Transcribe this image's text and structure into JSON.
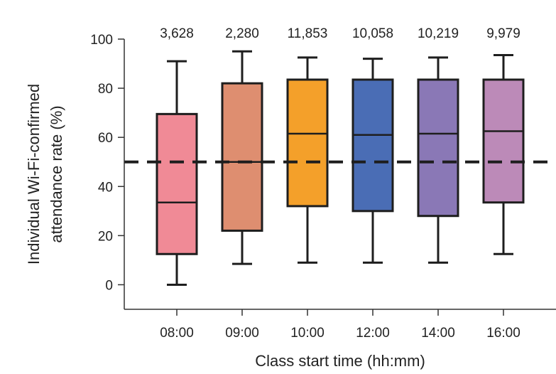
{
  "chart_data": {
    "type": "boxplot",
    "xlabel": "Class start time (hh:mm)",
    "ylabel": "Individual Wi-Fi-confirmed attendance rate (%)",
    "ylabel_lines": [
      "Individual Wi-Fi-confirmed",
      "attendance rate (%)"
    ],
    "ylim": [
      -10,
      100
    ],
    "yticks": [
      0,
      20,
      40,
      60,
      80,
      100
    ],
    "reference_line": 50,
    "grid": false,
    "categories": [
      "08:00",
      "09:00",
      "10:00",
      "12:00",
      "14:00",
      "16:00"
    ],
    "counts": [
      "3,628",
      "2,280",
      "11,853",
      "10,058",
      "10,219",
      "9,979"
    ],
    "boxes": [
      {
        "category": "08:00",
        "min": 0,
        "q1": 12.5,
        "median": 33.5,
        "q3": 69.5,
        "max": 91,
        "color": "#f08a96"
      },
      {
        "category": "09:00",
        "min": 8.5,
        "q1": 22,
        "median": 50,
        "q3": 82,
        "max": 95,
        "color": "#de8e70"
      },
      {
        "category": "10:00",
        "min": 9,
        "q1": 32,
        "median": 61.5,
        "q3": 83.5,
        "max": 92.5,
        "color": "#f4a02a"
      },
      {
        "category": "12:00",
        "min": 9,
        "q1": 30,
        "median": 61,
        "q3": 83.5,
        "max": 92,
        "color": "#4a6db5"
      },
      {
        "category": "14:00",
        "min": 9,
        "q1": 28,
        "median": 61.5,
        "q3": 83.5,
        "max": 92.5,
        "color": "#8a78b6"
      },
      {
        "category": "16:00",
        "min": 12.5,
        "q1": 33.5,
        "median": 62.5,
        "q3": 83.5,
        "max": 93.5,
        "color": "#bc8ab8"
      }
    ]
  }
}
